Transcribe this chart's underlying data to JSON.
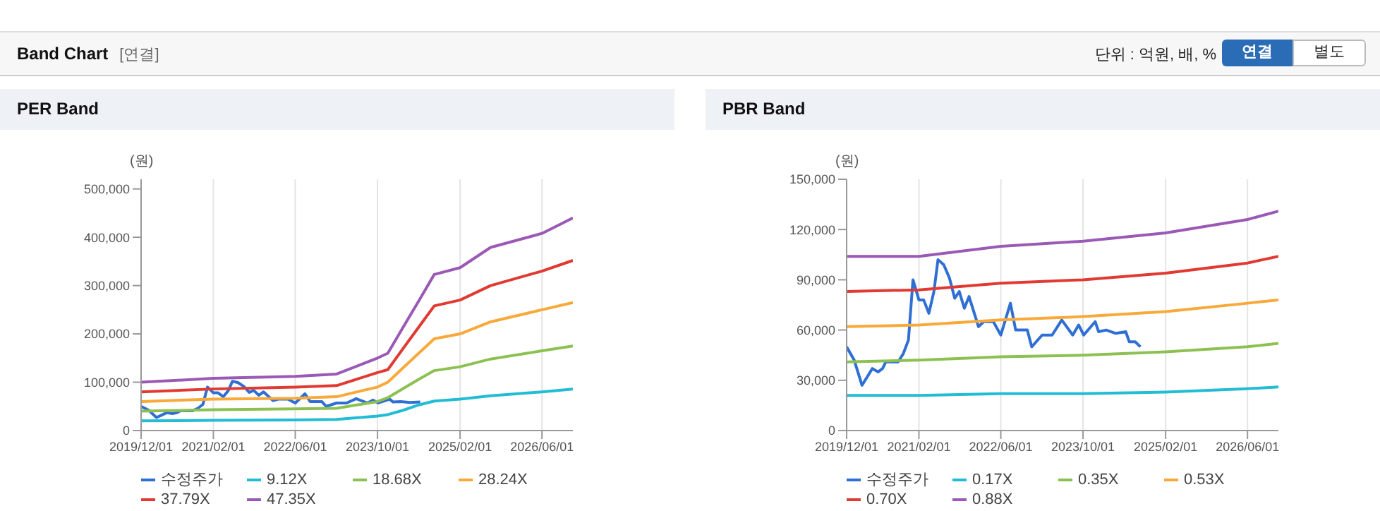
{
  "chart_data": [
    {
      "type": "other",
      "title": "Band Chart",
      "annotations": [
        "[연결]",
        "단위 : 억원, 배, %",
        "연결",
        "별도"
      ]
    },
    {
      "type": "line",
      "title": "PER Band",
      "ylabel": "(원)",
      "legend": "bottom",
      "grid": "x",
      "x": [
        "2019-12-01",
        "2021-02-01",
        "2022-06-01",
        "2023-02-01",
        "2023-10-01",
        "2023-12-01",
        "2024-03-01",
        "2024-06-01",
        "2024-09-01",
        "2025-02-01",
        "2025-08-01",
        "2026-06-01",
        "2026-12-01"
      ],
      "xlim": [
        "2019-12-01",
        "2026-12-01"
      ],
      "xticks": [
        {
          "value": "2019-12-01",
          "label": "2019/12/01"
        },
        {
          "value": "2021-02-01",
          "label": "2021/02/01"
        },
        {
          "value": "2022-06-01",
          "label": "2022/06/01"
        },
        {
          "value": "2023-10-01",
          "label": "2023/10/01"
        },
        {
          "value": "2025-02-01",
          "label": "2025/02/01"
        },
        {
          "value": "2026-06-01",
          "label": "2026/06/01"
        }
      ],
      "ylim": [
        0,
        520000
      ],
      "yticks": [
        {
          "value": 0,
          "label": "0"
        },
        {
          "value": 100000,
          "label": "100,000"
        },
        {
          "value": 200000,
          "label": "200,000"
        },
        {
          "value": 300000,
          "label": "300,000"
        },
        {
          "value": 400000,
          "label": "400,000"
        },
        {
          "value": 500000,
          "label": "500,000"
        }
      ],
      "series": [
        {
          "name": "수정주가",
          "color": "#2f6fd4",
          "x": [
            "2019-12-01",
            "2020-01-15",
            "2020-03-01",
            "2020-04-01",
            "2020-05-01",
            "2020-06-05",
            "2020-07-01",
            "2020-07-20",
            "2020-10-01",
            "2020-11-01",
            "2020-12-01",
            "2020-12-28",
            "2021-02-01",
            "2021-03-01",
            "2021-04-01",
            "2021-05-01",
            "2021-05-25",
            "2021-06-28",
            "2021-08-01",
            "2021-09-01",
            "2021-09-28",
            "2021-10-28",
            "2021-11-25",
            "2022-01-20",
            "2022-02-20",
            "2022-04-18",
            "2022-06-01",
            "2022-07-28",
            "2022-08-28",
            "2022-11-05",
            "2022-12-01",
            "2023-02-01",
            "2023-04-01",
            "2023-05-28",
            "2023-08-01",
            "2023-09-05",
            "2023-10-05",
            "2023-12-12",
            "2024-01-01",
            "2024-02-15",
            "2024-04-12",
            "2024-06-10"
          ],
          "values": [
            50000,
            42000,
            27000,
            32000,
            37000,
            35000,
            37000,
            41000,
            41000,
            46000,
            54000,
            90000,
            78000,
            78000,
            70000,
            83000,
            102000,
            99000,
            91000,
            79000,
            83000,
            73000,
            80000,
            62000,
            65000,
            65000,
            57000,
            76000,
            60000,
            60000,
            50000,
            57000,
            57000,
            66000,
            57000,
            63000,
            57000,
            65000,
            59000,
            60000,
            58000,
            59000
          ]
        },
        {
          "name": "9.12X",
          "color": "#22bcd4",
          "values": [
            20000,
            21000,
            22000,
            23000,
            30000,
            33000,
            42000,
            53000,
            61000,
            65000,
            72000,
            80000,
            86000
          ]
        },
        {
          "name": "18.68X",
          "color": "#8cc152",
          "values": [
            40000,
            43000,
            45000,
            46000,
            60000,
            68000,
            87000,
            106000,
            124000,
            132000,
            148000,
            165000,
            175000
          ]
        },
        {
          "name": "28.24X",
          "color": "#f8a93a",
          "values": [
            60000,
            65000,
            67000,
            70000,
            90000,
            100000,
            130000,
            160000,
            190000,
            200000,
            225000,
            250000,
            265000
          ]
        },
        {
          "name": "37.79X",
          "color": "#e03a32",
          "values": [
            80000,
            86000,
            90000,
            93000,
            120000,
            126000,
            170000,
            214000,
            258000,
            270000,
            300000,
            330000,
            352000
          ]
        },
        {
          "name": "47.35X",
          "color": "#9b59b6",
          "values": [
            100000,
            108000,
            112000,
            117000,
            150000,
            160000,
            214000,
            268000,
            323000,
            337000,
            379000,
            408000,
            440000
          ]
        }
      ]
    },
    {
      "type": "line",
      "title": "PBR Band",
      "ylabel": "(원)",
      "legend": "bottom",
      "grid": "x",
      "x": [
        "2019-12-01",
        "2021-02-01",
        "2022-06-01",
        "2023-10-01",
        "2025-02-01",
        "2026-06-01",
        "2026-12-01"
      ],
      "xlim": [
        "2019-12-01",
        "2026-12-01"
      ],
      "xticks": [
        {
          "value": "2019-12-01",
          "label": "2019/12/01"
        },
        {
          "value": "2021-02-01",
          "label": "2021/02/01"
        },
        {
          "value": "2022-06-01",
          "label": "2022/06/01"
        },
        {
          "value": "2023-10-01",
          "label": "2023/10/01"
        },
        {
          "value": "2025-02-01",
          "label": "2025/02/01"
        },
        {
          "value": "2026-06-01",
          "label": "2026/06/01"
        }
      ],
      "ylim": [
        0,
        150000
      ],
      "yticks": [
        {
          "value": 0,
          "label": "0"
        },
        {
          "value": 30000,
          "label": "30,000"
        },
        {
          "value": 60000,
          "label": "60,000"
        },
        {
          "value": 90000,
          "label": "90,000"
        },
        {
          "value": 120000,
          "label": "120,000"
        },
        {
          "value": 150000,
          "label": "150,000"
        }
      ],
      "series": [
        {
          "name": "수정주가",
          "color": "#2f6fd4",
          "x": [
            "2019-12-01",
            "2020-01-15",
            "2020-03-01",
            "2020-04-01",
            "2020-05-01",
            "2020-06-05",
            "2020-07-01",
            "2020-07-20",
            "2020-10-01",
            "2020-11-01",
            "2020-12-01",
            "2020-12-28",
            "2021-02-01",
            "2021-03-01",
            "2021-04-01",
            "2021-05-01",
            "2021-05-25",
            "2021-06-28",
            "2021-08-01",
            "2021-09-01",
            "2021-09-28",
            "2021-10-28",
            "2021-11-25",
            "2022-01-20",
            "2022-02-20",
            "2022-04-18",
            "2022-06-01",
            "2022-07-28",
            "2022-08-28",
            "2022-11-05",
            "2022-12-01",
            "2023-02-01",
            "2023-04-01",
            "2023-05-28",
            "2023-08-01",
            "2023-09-05",
            "2023-10-05",
            "2023-12-12",
            "2024-01-01",
            "2024-02-15",
            "2024-04-12",
            "2024-06-10",
            "2024-07-01",
            "2024-08-05",
            "2024-09-05"
          ],
          "values": [
            50000,
            42000,
            27000,
            32000,
            37000,
            35000,
            37000,
            41000,
            41000,
            46000,
            54000,
            90000,
            78000,
            78000,
            70000,
            83000,
            102000,
            99000,
            91000,
            79000,
            83000,
            73000,
            80000,
            62000,
            65000,
            65000,
            57000,
            76000,
            60000,
            60000,
            50000,
            57000,
            57000,
            66000,
            57000,
            63000,
            57000,
            65000,
            59000,
            60000,
            58000,
            59000,
            53000,
            53000,
            50000
          ]
        },
        {
          "name": "0.17X",
          "color": "#22bcd4",
          "values": [
            21000,
            21000,
            22000,
            22000,
            23000,
            25000,
            26000
          ]
        },
        {
          "name": "0.35X",
          "color": "#8cc152",
          "values": [
            41000,
            42000,
            44000,
            45000,
            47000,
            50000,
            52000
          ]
        },
        {
          "name": "0.53X",
          "color": "#f8a93a",
          "values": [
            62000,
            63000,
            66000,
            68000,
            71000,
            76000,
            78000
          ]
        },
        {
          "name": "0.70X",
          "color": "#e03a32",
          "values": [
            83000,
            84000,
            88000,
            90000,
            94000,
            100000,
            104000
          ]
        },
        {
          "name": "0.88X",
          "color": "#9b59b6",
          "values": [
            104000,
            104000,
            110000,
            113000,
            118000,
            126000,
            131000
          ]
        }
      ]
    }
  ]
}
